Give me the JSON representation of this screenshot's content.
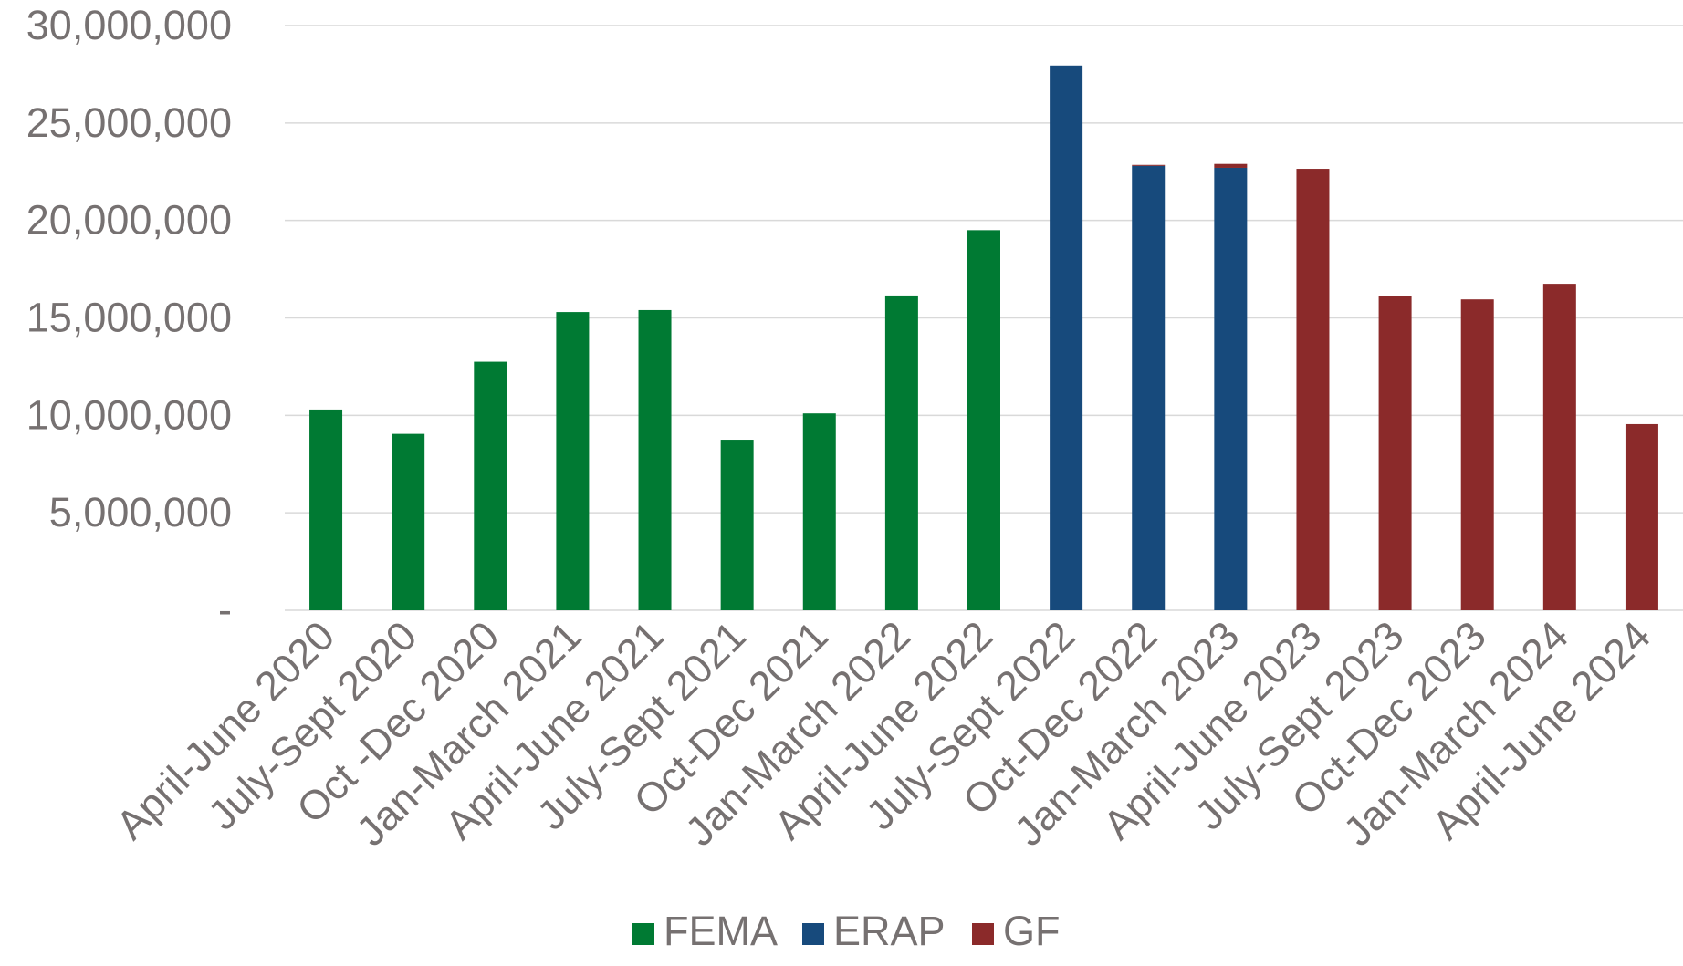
{
  "chart_data": {
    "type": "bar",
    "stacked": true,
    "categories": [
      "April-June 2020",
      "July-Sept 2020",
      "Oct -Dec 2020",
      "Jan-March 2021",
      "April-June 2021",
      "July-Sept 2021",
      "Oct-Dec 2021",
      "Jan-March 2022",
      "April-June 2022",
      "July-Sept 2022",
      "Oct-Dec 2022",
      "Jan-March 2023",
      "April-June 2023",
      "July-Sept 2023",
      "Oct-Dec 2023",
      "Jan-March 2024",
      "April-June 2024"
    ],
    "series": [
      {
        "name": "FEMA",
        "color": "#007A33",
        "values": [
          10300000,
          9050000,
          12750000,
          15300000,
          15400000,
          8750000,
          10100000,
          16150000,
          19500000,
          0,
          0,
          0,
          0,
          0,
          0,
          0,
          0
        ]
      },
      {
        "name": "ERAP",
        "color": "#174A7C",
        "values": [
          0,
          0,
          0,
          0,
          0,
          0,
          0,
          0,
          0,
          27950000,
          22800000,
          22700000,
          0,
          0,
          0,
          0,
          0
        ]
      },
      {
        "name": "GF",
        "color": "#8B2A2A",
        "values": [
          0,
          0,
          0,
          0,
          0,
          0,
          0,
          0,
          0,
          0,
          50000,
          200000,
          22650000,
          16100000,
          15950000,
          16750000,
          9550000
        ]
      }
    ],
    "yticks": [
      "-",
      "5,000,000",
      "10,000,000",
      "15,000,000",
      "20,000,000",
      "25,000,000",
      "30,000,000"
    ],
    "ylim": [
      0,
      30000000
    ],
    "grid": true,
    "legend_position": "bottom",
    "title": "",
    "xlabel": "",
    "ylabel": ""
  }
}
